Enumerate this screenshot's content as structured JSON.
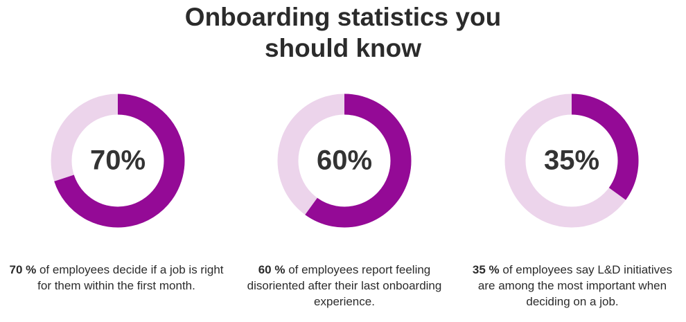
{
  "title": "Onboarding statistics you should know",
  "chart_data": [
    {
      "type": "donut",
      "values": [
        70
      ],
      "value_labels": [
        "70%"
      ],
      "color": "#940a96",
      "track_color": "#ecd4eb",
      "caption_lead": "70 %",
      "caption": "of employees decide if a job is right for them within the first month."
    },
    {
      "type": "donut",
      "values": [
        60
      ],
      "value_labels": [
        "60%"
      ],
      "color": "#940a96",
      "track_color": "#ecd4eb",
      "caption_lead": "60 %",
      "caption": "of employees report feeling disoriented after their last onboarding experience."
    },
    {
      "type": "donut",
      "values": [
        35
      ],
      "value_labels": [
        "35%"
      ],
      "color": "#940a96",
      "track_color": "#ecd4eb",
      "caption_lead": "35 %",
      "caption": "of employees say L&D initiatives are among the most important when deciding on a job."
    }
  ]
}
